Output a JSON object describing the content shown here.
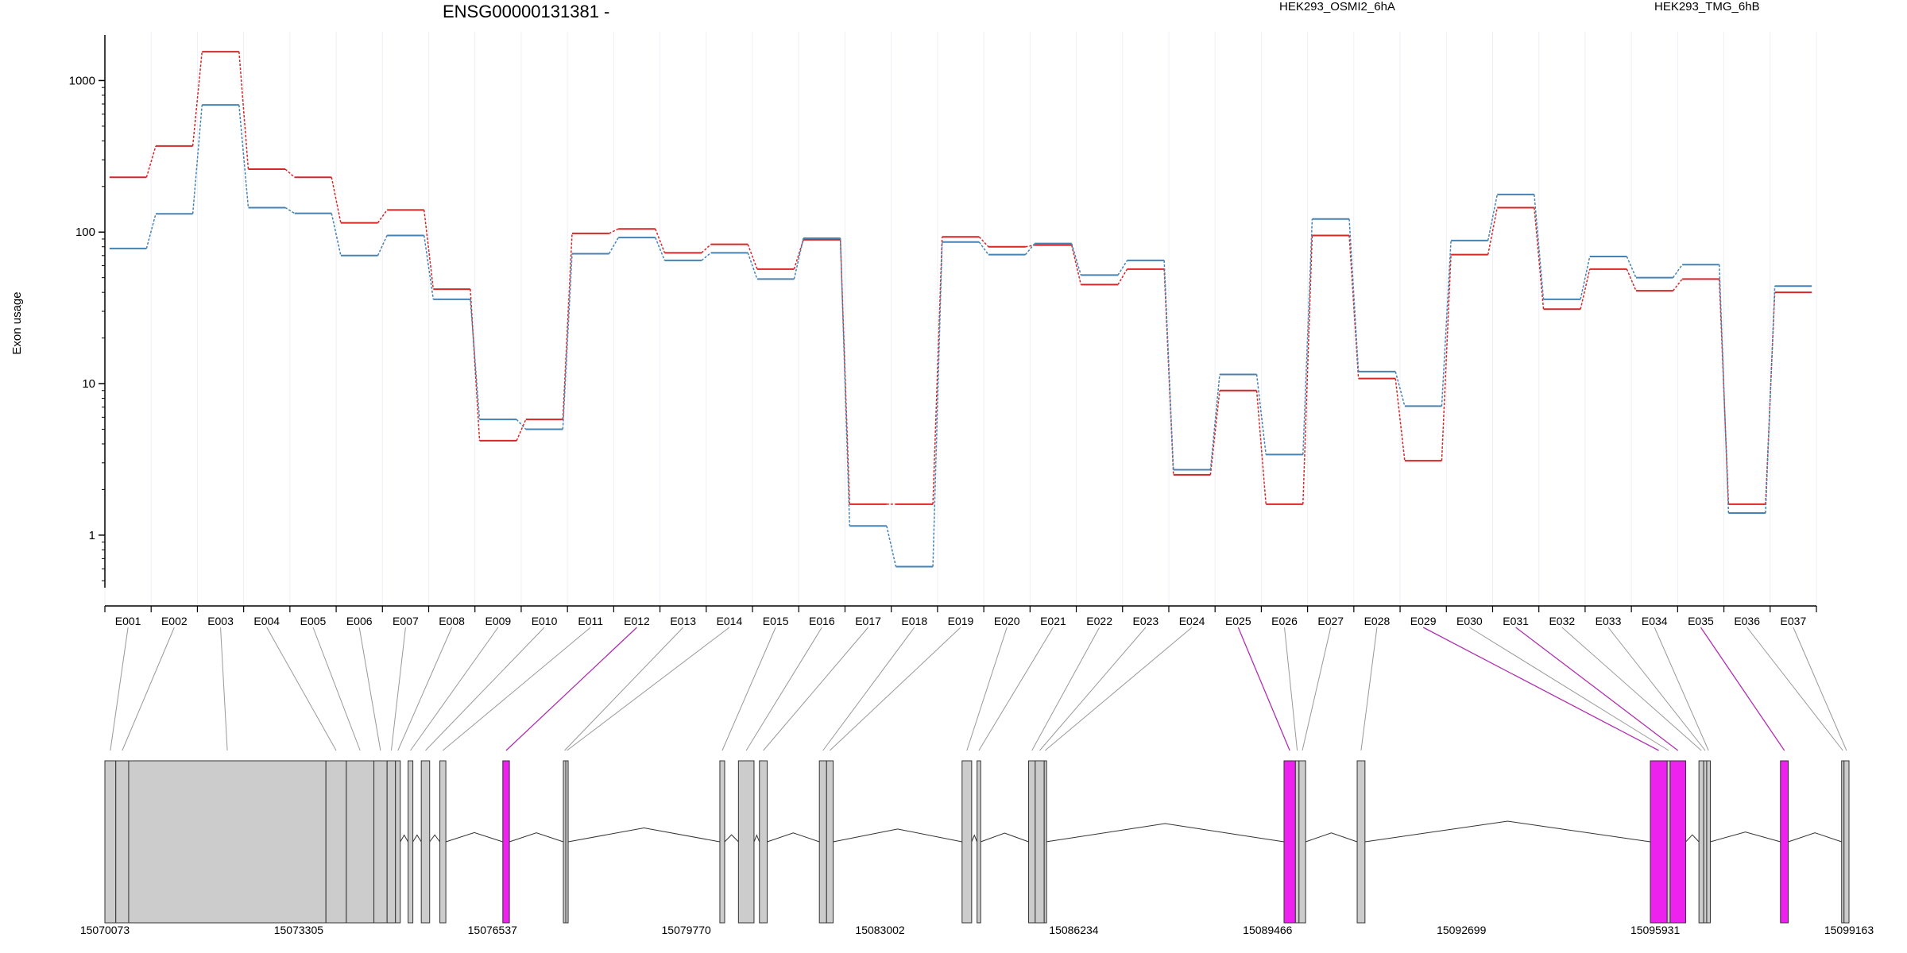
{
  "chart_data": {
    "type": "line",
    "title": "ENSG00000131381 -",
    "ylabel": "Exon usage",
    "xlabel": "",
    "y_scale": "log",
    "ylim": [
      0.45,
      2000
    ],
    "y_ticks": [
      {
        "value": 1,
        "label": "1"
      },
      {
        "value": 10,
        "label": "10"
      },
      {
        "value": 100,
        "label": "100"
      },
      {
        "value": 1000,
        "label": "1000"
      }
    ],
    "grid": true,
    "legend_placement": "top",
    "categories": [
      "E001",
      "E002",
      "E003",
      "E004",
      "E005",
      "E006",
      "E007",
      "E008",
      "E009",
      "E010",
      "E011",
      "E012",
      "E013",
      "E014",
      "E015",
      "E016",
      "E017",
      "E018",
      "E019",
      "E020",
      "E021",
      "E022",
      "E023",
      "E024",
      "E025",
      "E026",
      "E027",
      "E028",
      "E029",
      "E030",
      "E031",
      "E032",
      "E033",
      "E034",
      "E035",
      "E036",
      "E037"
    ],
    "series": [
      {
        "name": "HEK293_OSMI2_6hA",
        "color": "#d62728",
        "values": [
          230,
          370,
          1550,
          260,
          230,
          115,
          140,
          42,
          4.2,
          5.8,
          98,
          105,
          73,
          83,
          57,
          89,
          1.6,
          1.6,
          93,
          80,
          82,
          45,
          57,
          2.5,
          9.0,
          1.6,
          95,
          10.8,
          3.1,
          71,
          145,
          31,
          57,
          41,
          49,
          1.6,
          40
        ]
      },
      {
        "name": "HEK293_TMG_6hB",
        "color": "#4682b4",
        "values": [
          78,
          132,
          690,
          145,
          133,
          70,
          95,
          36,
          5.8,
          5.0,
          72,
          92,
          65,
          73,
          49,
          91,
          1.15,
          0.62,
          86,
          71,
          84,
          52,
          65,
          2.7,
          11.5,
          3.4,
          122,
          12,
          7.1,
          88,
          177,
          36,
          69,
          50,
          61,
          1.4,
          44
        ]
      }
    ],
    "highlighted_exons": [
      "E012",
      "E025",
      "E029",
      "E031",
      "E035"
    ],
    "highlight_color": "#ee22ee",
    "gene_model": {
      "start": 15070073,
      "end": 15099163,
      "coordinate_ticks": [
        "15070073",
        "15073305",
        "15076537",
        "15079770",
        "15083002",
        "15086234",
        "15089466",
        "15092699",
        "15095931",
        "15099163"
      ],
      "exons": [
        {
          "id": "E001",
          "start": 15070073,
          "end": 15070255
        },
        {
          "id": "E002",
          "start": 15070255,
          "end": 15070470
        },
        {
          "id": "E003",
          "start": 15070470,
          "end": 15073760
        },
        {
          "id": "E004",
          "start": 15073760,
          "end": 15074100
        },
        {
          "id": "E005",
          "start": 15074100,
          "end": 15074560
        },
        {
          "id": "E006",
          "start": 15074560,
          "end": 15074780
        },
        {
          "id": "E007",
          "start": 15074780,
          "end": 15074920
        },
        {
          "id": "E008",
          "start": 15074920,
          "end": 15075000
        },
        {
          "id": "E009",
          "start": 15075130,
          "end": 15075210
        },
        {
          "id": "E010",
          "start": 15075350,
          "end": 15075490
        },
        {
          "id": "E011",
          "start": 15075660,
          "end": 15075760
        },
        {
          "id": "E012",
          "start": 15076710,
          "end": 15076820
        },
        {
          "id": "E013",
          "start": 15077720,
          "end": 15077760
        },
        {
          "id": "E014",
          "start": 15077760,
          "end": 15077800
        },
        {
          "id": "E015",
          "start": 15080330,
          "end": 15080410
        },
        {
          "id": "E016",
          "start": 15080640,
          "end": 15080900
        },
        {
          "id": "E017",
          "start": 15080990,
          "end": 15081120
        },
        {
          "id": "E018",
          "start": 15081990,
          "end": 15082110
        },
        {
          "id": "E019",
          "start": 15082110,
          "end": 15082220
        },
        {
          "id": "E020",
          "start": 15084370,
          "end": 15084530
        },
        {
          "id": "E021",
          "start": 15084620,
          "end": 15084680
        },
        {
          "id": "E022",
          "start": 15085480,
          "end": 15085590
        },
        {
          "id": "E023",
          "start": 15085590,
          "end": 15085740
        },
        {
          "id": "E024",
          "start": 15085740,
          "end": 15085770
        },
        {
          "id": "E025",
          "start": 15089740,
          "end": 15089930
        },
        {
          "id": "E026",
          "start": 15089930,
          "end": 15089990
        },
        {
          "id": "E027",
          "start": 15089990,
          "end": 15090100
        },
        {
          "id": "E028",
          "start": 15090960,
          "end": 15091090
        },
        {
          "id": "E029",
          "start": 15095850,
          "end": 15096130
        },
        {
          "id": "E030",
          "start": 15096130,
          "end": 15096180
        },
        {
          "id": "E031",
          "start": 15096180,
          "end": 15096440
        },
        {
          "id": "E032",
          "start": 15096660,
          "end": 15096740
        },
        {
          "id": "E033",
          "start": 15096740,
          "end": 15096790
        },
        {
          "id": "E034",
          "start": 15096790,
          "end": 15096850
        },
        {
          "id": "E035",
          "start": 15098020,
          "end": 15098150
        },
        {
          "id": "E036",
          "start": 15099040,
          "end": 15099080
        },
        {
          "id": "E037",
          "start": 15099080,
          "end": 15099163
        }
      ]
    }
  }
}
